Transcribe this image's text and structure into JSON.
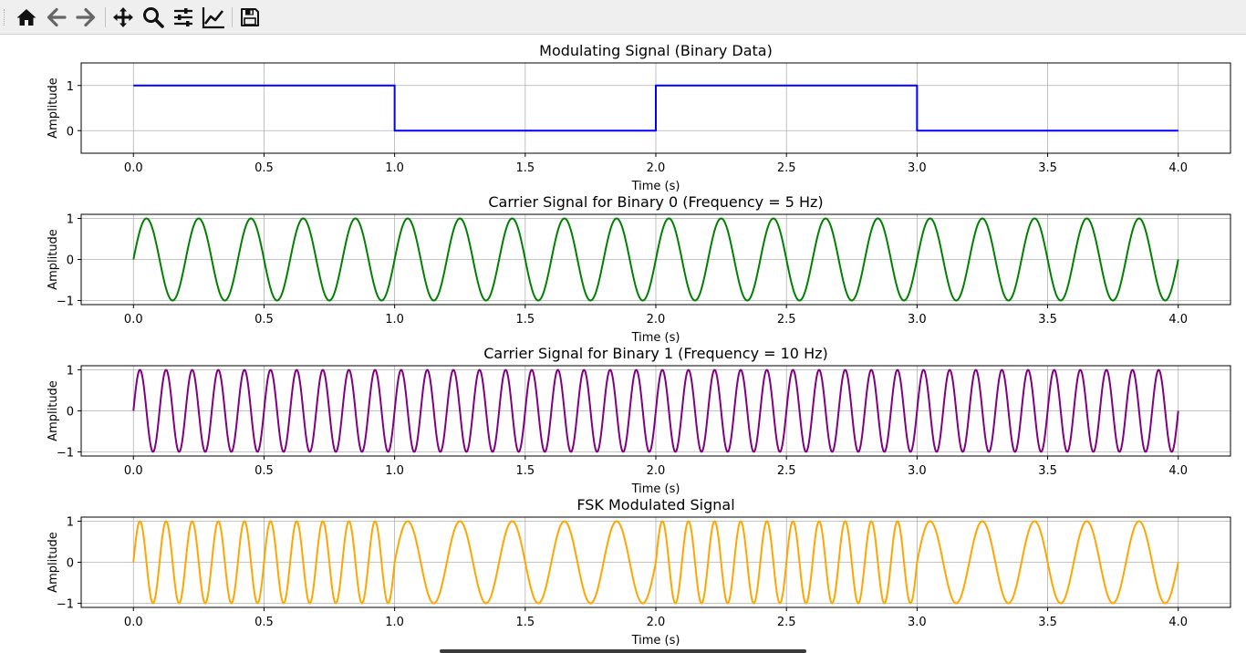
{
  "toolbar": {
    "buttons": [
      {
        "name": "home-icon",
        "tooltip": "Reset original view"
      },
      {
        "name": "back-arrow-icon",
        "tooltip": "Back to previous view"
      },
      {
        "name": "forward-arrow-icon",
        "tooltip": "Forward to next view"
      },
      {
        "name": "pan-icon",
        "tooltip": "Pan axes"
      },
      {
        "name": "zoom-icon",
        "tooltip": "Zoom to rectangle"
      },
      {
        "name": "configure-subplots-icon",
        "tooltip": "Configure subplots"
      },
      {
        "name": "edit-axis-icon",
        "tooltip": "Edit axis, curve and image parameters"
      },
      {
        "name": "save-icon",
        "tooltip": "Save the figure"
      }
    ]
  },
  "chart_data": [
    {
      "type": "line",
      "title": "Modulating Signal (Binary Data)",
      "xlabel": "Time (s)",
      "ylabel": "Amplitude",
      "xlim": [
        -0.2,
        4.2
      ],
      "ylim": [
        -0.5,
        1.5
      ],
      "xticks": [
        "0.0",
        "0.5",
        "1.0",
        "1.5",
        "2.0",
        "2.5",
        "3.0",
        "3.5",
        "4.0"
      ],
      "yticks": [
        {
          "value": 0,
          "label": "0"
        },
        {
          "value": 1,
          "label": "1"
        }
      ],
      "grid": true,
      "color": "#0000ff",
      "signal": {
        "kind": "step",
        "bits": [
          1,
          0,
          1,
          0
        ],
        "bit_duration": 1
      }
    },
    {
      "type": "line",
      "title": "Carrier Signal for Binary 0 (Frequency = 5 Hz)",
      "xlabel": "Time (s)",
      "ylabel": "Amplitude",
      "xlim": [
        -0.2,
        4.2
      ],
      "ylim": [
        -1.1,
        1.1
      ],
      "xticks": [
        "0.0",
        "0.5",
        "1.0",
        "1.5",
        "2.0",
        "2.5",
        "3.0",
        "3.5",
        "4.0"
      ],
      "yticks": [
        {
          "value": -1,
          "label": "−1"
        },
        {
          "value": 0,
          "label": "0"
        },
        {
          "value": 1,
          "label": "1"
        }
      ],
      "grid": true,
      "color": "#008000",
      "signal": {
        "kind": "sine",
        "frequency_hz": 5,
        "t_start": 0,
        "t_end": 4
      }
    },
    {
      "type": "line",
      "title": "Carrier Signal for Binary 1 (Frequency = 10 Hz)",
      "xlabel": "Time (s)",
      "ylabel": "Amplitude",
      "xlim": [
        -0.2,
        4.2
      ],
      "ylim": [
        -1.1,
        1.1
      ],
      "xticks": [
        "0.0",
        "0.5",
        "1.0",
        "1.5",
        "2.0",
        "2.5",
        "3.0",
        "3.5",
        "4.0"
      ],
      "yticks": [
        {
          "value": -1,
          "label": "−1"
        },
        {
          "value": 0,
          "label": "0"
        },
        {
          "value": 1,
          "label": "1"
        }
      ],
      "grid": true,
      "color": "#800080",
      "signal": {
        "kind": "sine",
        "frequency_hz": 10,
        "t_start": 0,
        "t_end": 4
      }
    },
    {
      "type": "line",
      "title": "FSK Modulated Signal",
      "xlabel": "Time (s)",
      "ylabel": "Amplitude",
      "xlim": [
        -0.2,
        4.2
      ],
      "ylim": [
        -1.1,
        1.1
      ],
      "xticks": [
        "0.0",
        "0.5",
        "1.0",
        "1.5",
        "2.0",
        "2.5",
        "3.0",
        "3.5",
        "4.0"
      ],
      "yticks": [
        {
          "value": -1,
          "label": "−1"
        },
        {
          "value": 0,
          "label": "0"
        },
        {
          "value": 1,
          "label": "1"
        }
      ],
      "grid": true,
      "color": "#ffa500",
      "signal": {
        "kind": "fsk",
        "bits": [
          1,
          0,
          1,
          0
        ],
        "bit_duration": 1,
        "frequency_bit1_hz": 10,
        "frequency_bit0_hz": 5
      }
    }
  ]
}
